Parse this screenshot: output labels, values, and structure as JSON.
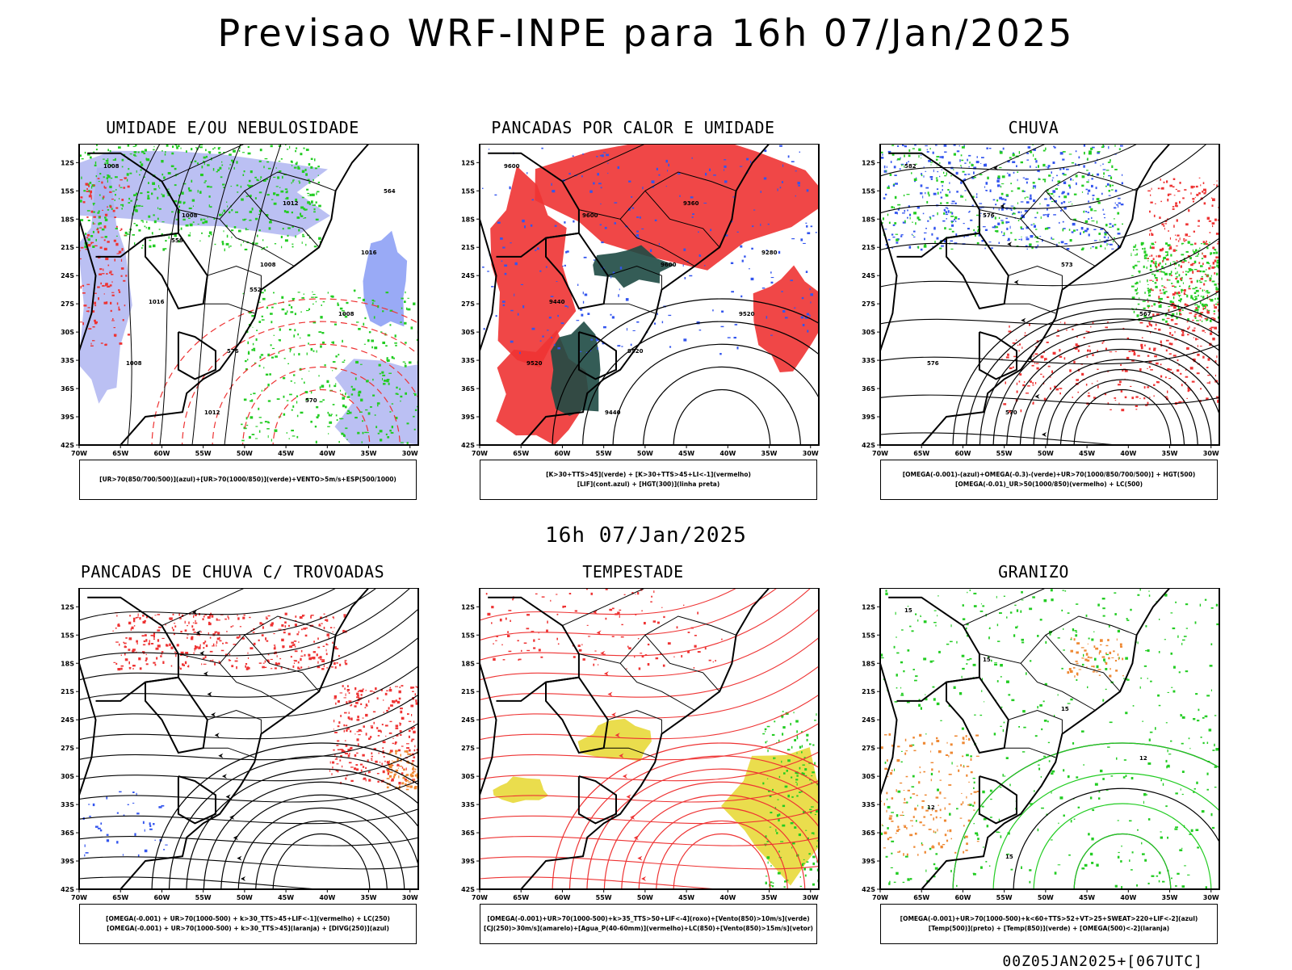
{
  "header": {
    "title": "Previsao WRF-INPE  para 16h 07/Jan/2025",
    "mid_title": "16h 07/Jan/2025",
    "footer": "00Z05JAN2025+[067UTC]"
  },
  "colors": {
    "blue": "#3355ee",
    "lavender": "#aab0f0",
    "green": "#22cc22",
    "red": "#ee3333",
    "darkteal": "#1e4a44",
    "yellow": "#e8d93a",
    "orange": "#ee8833",
    "black": "#000000"
  },
  "chart_data": [
    {
      "type": "map",
      "title": "UMIDADE E/OU NEBULOSIDADE",
      "legend": [
        "[UR>70(850/700/500)](azul)+[UR>70(1000/850)](verde)+VENTO>5m/s+ESP(500/1000)"
      ],
      "xticks": [
        "70W",
        "65W",
        "60W",
        "55W",
        "50W",
        "45W",
        "40W",
        "35W",
        "30W"
      ],
      "yticks": [
        "12S",
        "15S",
        "18S",
        "21S",
        "24S",
        "27S",
        "30S",
        "33S",
        "36S",
        "39S",
        "42S"
      ],
      "lon_range": [
        -70,
        -29
      ],
      "lat_range": [
        -42,
        -10
      ],
      "contour_labels": [
        "1008",
        "1008",
        "1008",
        "1008",
        "1008",
        "1012",
        "1012",
        "1016",
        "1016",
        "576",
        "570",
        "564",
        "558",
        "552"
      ]
    },
    {
      "type": "map",
      "title": "PANCADAS POR CALOR E UMIDADE",
      "legend": [
        "[K>30+TTS>45](verde) + [K>30+TTS>45+LI<-1](vermelho)",
        "[LIF](cont.azul) + [HGT(300)](linha preta)"
      ],
      "xticks": [
        "70W",
        "65W",
        "60W",
        "55W",
        "50W",
        "45W",
        "40W",
        "35W",
        "30W"
      ],
      "yticks": [
        "12S",
        "15S",
        "18S",
        "21S",
        "24S",
        "27S",
        "30S",
        "33S",
        "36S",
        "39S",
        "42S"
      ],
      "lon_range": [
        -70,
        -29
      ],
      "lat_range": [
        -42,
        -10
      ],
      "contour_labels": [
        "9600",
        "9600",
        "9600",
        "9520",
        "9520",
        "9440",
        "9360",
        "9280",
        "9440",
        "9520"
      ]
    },
    {
      "type": "map",
      "title": "CHUVA",
      "legend": [
        "[OMEGA(-0.001)-(azul)+OMEGA(-0.3)-(verde)+UR>70(1000/850/700/500)] + HGT(500)",
        "[OMEGA(-0.01)_UR>50(1000/850)(vermelho) + LC(500)"
      ],
      "xticks": [
        "70W",
        "65W",
        "60W",
        "55W",
        "50W",
        "45W",
        "40W",
        "35W",
        "30W"
      ],
      "yticks": [
        "12S",
        "15S",
        "18S",
        "21S",
        "24S",
        "27S",
        "30S",
        "33S",
        "36S",
        "39S",
        "42S"
      ],
      "lon_range": [
        -70,
        -29
      ],
      "lat_range": [
        -42,
        -10
      ],
      "contour_labels": [
        "582",
        "576",
        "573",
        "567",
        "576",
        "570"
      ]
    },
    {
      "type": "map",
      "title": "PANCADAS DE CHUVA C/ TROVOADAS",
      "legend": [
        "[OMEGA(-0.001) + UR>70(1000-500) + k>30_TTS>45+LIF<-1](vermelho) + LC(250)",
        "[OMEGA(-0.001) + UR>70(1000-500) + k>30_TTS>45](laranja) + [DIVG(250)](azul)"
      ],
      "xticks": [
        "70W",
        "65W",
        "60W",
        "55W",
        "50W",
        "45W",
        "40W",
        "35W",
        "30W"
      ],
      "yticks": [
        "12S",
        "15S",
        "18S",
        "21S",
        "24S",
        "27S",
        "30S",
        "33S",
        "36S",
        "39S",
        "42S"
      ],
      "lon_range": [
        -70,
        -29
      ],
      "lat_range": [
        -42,
        -10
      ],
      "contour_labels": []
    },
    {
      "type": "map",
      "title": "TEMPESTADE",
      "legend": [
        "[OMEGA(-0.001)+UR>70(1000-500)+k>35_TTS>50+LIF<-4](roxo)+[Vento(850)>10m/s](verde)",
        "[CJ(250)>30m/s](amarelo)+[Agua_P(40-60mm)](vermelho)+LC(850)+[Vento(850)>15m/s](vetor)"
      ],
      "xticks": [
        "70W",
        "65W",
        "60W",
        "55W",
        "50W",
        "45W",
        "40W",
        "35W",
        "30W"
      ],
      "yticks": [
        "12S",
        "15S",
        "18S",
        "21S",
        "24S",
        "27S",
        "30S",
        "33S",
        "36S",
        "39S",
        "42S"
      ],
      "lon_range": [
        -70,
        -29
      ],
      "lat_range": [
        -42,
        -10
      ],
      "contour_labels": []
    },
    {
      "type": "map",
      "title": "GRANIZO",
      "legend": [
        "[OMEGA(-0.001)+UR>70(1000-500)+k<60+TTS>52+VT>25+SWEAT>220+LIF<-2](azul)",
        "[Temp(500)](preto) + [Temp(850)](verde) + [OMEGA(500)<-2](laranja)"
      ],
      "xticks": [
        "70W",
        "65W",
        "60W",
        "55W",
        "50W",
        "45W",
        "40W",
        "35W",
        "30W"
      ],
      "yticks": [
        "12S",
        "15S",
        "18S",
        "21S",
        "24S",
        "27S",
        "30S",
        "33S",
        "36S",
        "39S",
        "42S"
      ],
      "lon_range": [
        -70,
        -29
      ],
      "lat_range": [
        -42,
        -10
      ],
      "contour_labels": [
        "15",
        "15",
        "15",
        "12",
        "12",
        "15"
      ]
    }
  ]
}
